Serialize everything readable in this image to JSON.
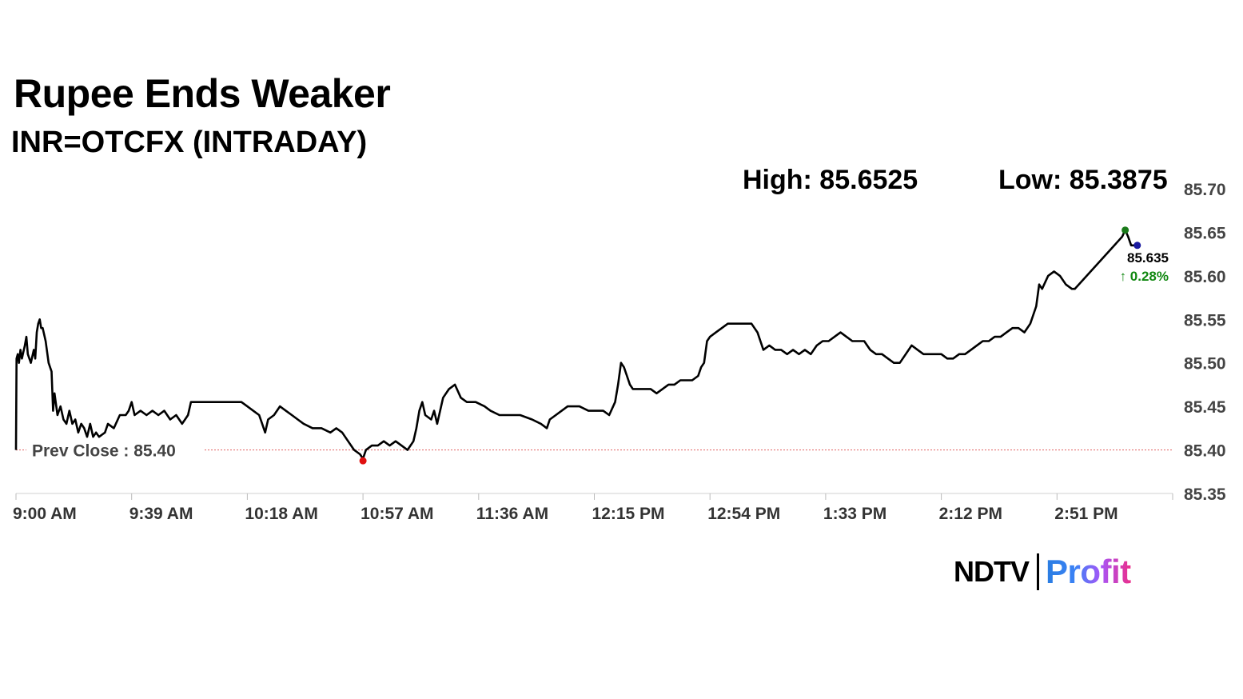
{
  "header": {
    "title": "Rupee Ends Weaker",
    "subtitle": "INR=OTCFX (INTRADAY)",
    "high_text": "High: 85.6525",
    "low_text": "Low: 85.3875"
  },
  "chart_data": {
    "type": "line",
    "title": "Rupee Ends Weaker",
    "subtitle": "INR=OTCFX (INTRADAY)",
    "xlabel": "",
    "ylabel": "",
    "ylim": [
      85.35,
      85.7
    ],
    "y_ticks": [
      "85.70",
      "85.65",
      "85.60",
      "85.55",
      "85.50",
      "85.45",
      "85.40",
      "85.35"
    ],
    "y_tick_values": [
      85.7,
      85.65,
      85.6,
      85.55,
      85.5,
      85.45,
      85.4,
      85.35
    ],
    "x_ticks": [
      "9:00 AM",
      "9:39 AM",
      "10:18 AM",
      "10:57 AM",
      "11:36 AM",
      "12:15 PM",
      "12:54 PM",
      "1:33 PM",
      "2:12 PM",
      "2:51 PM"
    ],
    "x_tick_minutes": [
      0,
      39,
      78,
      117,
      156,
      195,
      234,
      273,
      312,
      351
    ],
    "x_range_minutes": [
      0,
      390
    ],
    "grid": false,
    "prev_close": 85.4,
    "prev_close_label": "Prev Close : 85.40",
    "high": 85.6525,
    "low": 85.3875,
    "last_value_label": "85.635",
    "last_change_label": "↑ 0.28%",
    "colors": {
      "line": "#000000",
      "prev_close": "#e06060",
      "high_marker": "#1a7a1a",
      "low_marker": "#e01010",
      "last_marker": "#1a1aa0",
      "change": "#118811"
    },
    "series": [
      {
        "values": [
          [
            0,
            85.4
          ],
          [
            0.2,
            85.505
          ],
          [
            0.6,
            85.51
          ],
          [
            1,
            85.5
          ],
          [
            1.5,
            85.515
          ],
          [
            2,
            85.505
          ],
          [
            3,
            85.52
          ],
          [
            3.5,
            85.53
          ],
          [
            4,
            85.51
          ],
          [
            5,
            85.5
          ],
          [
            6,
            85.515
          ],
          [
            6.5,
            85.505
          ],
          [
            7,
            85.535
          ],
          [
            7.5,
            85.545
          ],
          [
            8,
            85.55
          ],
          [
            8.5,
            85.54
          ],
          [
            9,
            85.54
          ],
          [
            10,
            85.525
          ],
          [
            11,
            85.5
          ],
          [
            12,
            85.49
          ],
          [
            12.5,
            85.445
          ],
          [
            13,
            85.465
          ],
          [
            14,
            85.44
          ],
          [
            15,
            85.45
          ],
          [
            16,
            85.435
          ],
          [
            17,
            85.43
          ],
          [
            18,
            85.445
          ],
          [
            19,
            85.43
          ],
          [
            20,
            85.435
          ],
          [
            21,
            85.42
          ],
          [
            22,
            85.43
          ],
          [
            23,
            85.425
          ],
          [
            24,
            85.415
          ],
          [
            25,
            85.43
          ],
          [
            26,
            85.415
          ],
          [
            27,
            85.42
          ],
          [
            28,
            85.415
          ],
          [
            30,
            85.42
          ],
          [
            31,
            85.43
          ],
          [
            33,
            85.425
          ],
          [
            35,
            85.44
          ],
          [
            37,
            85.44
          ],
          [
            38,
            85.445
          ],
          [
            39,
            85.455
          ],
          [
            40,
            85.44
          ],
          [
            42,
            85.445
          ],
          [
            44,
            85.44
          ],
          [
            46,
            85.445
          ],
          [
            48,
            85.44
          ],
          [
            50,
            85.445
          ],
          [
            52,
            85.435
          ],
          [
            54,
            85.44
          ],
          [
            56,
            85.43
          ],
          [
            57,
            85.435
          ],
          [
            58,
            85.44
          ],
          [
            59,
            85.455
          ],
          [
            60,
            85.455
          ],
          [
            70,
            85.455
          ],
          [
            76,
            85.455
          ],
          [
            78,
            85.45
          ],
          [
            80,
            85.445
          ],
          [
            82,
            85.44
          ],
          [
            83,
            85.43
          ],
          [
            84,
            85.42
          ],
          [
            85,
            85.435
          ],
          [
            87,
            85.44
          ],
          [
            89,
            85.45
          ],
          [
            91,
            85.445
          ],
          [
            93,
            85.44
          ],
          [
            95,
            85.435
          ],
          [
            97,
            85.43
          ],
          [
            100,
            85.425
          ],
          [
            103,
            85.425
          ],
          [
            106,
            85.42
          ],
          [
            108,
            85.425
          ],
          [
            110,
            85.42
          ],
          [
            112,
            85.41
          ],
          [
            114,
            85.4
          ],
          [
            116,
            85.395
          ],
          [
            117,
            85.39
          ],
          [
            118,
            85.4
          ],
          [
            120,
            85.405
          ],
          [
            122,
            85.405
          ],
          [
            124,
            85.41
          ],
          [
            126,
            85.405
          ],
          [
            128,
            85.41
          ],
          [
            130,
            85.405
          ],
          [
            132,
            85.4
          ],
          [
            134,
            85.41
          ],
          [
            135,
            85.425
          ],
          [
            136,
            85.445
          ],
          [
            137,
            85.455
          ],
          [
            138,
            85.44
          ],
          [
            140,
            85.435
          ],
          [
            141,
            85.445
          ],
          [
            142,
            85.43
          ],
          [
            144,
            85.46
          ],
          [
            146,
            85.47
          ],
          [
            148,
            85.475
          ],
          [
            150,
            85.46
          ],
          [
            152,
            85.455
          ],
          [
            155,
            85.455
          ],
          [
            158,
            85.45
          ],
          [
            160,
            85.445
          ],
          [
            163,
            85.44
          ],
          [
            166,
            85.44
          ],
          [
            170,
            85.44
          ],
          [
            174,
            85.435
          ],
          [
            177,
            85.43
          ],
          [
            179,
            85.425
          ],
          [
            180,
            85.435
          ],
          [
            182,
            85.44
          ],
          [
            184,
            85.445
          ],
          [
            186,
            85.45
          ],
          [
            190,
            85.45
          ],
          [
            193,
            85.445
          ],
          [
            196,
            85.445
          ],
          [
            198,
            85.445
          ],
          [
            200,
            85.44
          ],
          [
            202,
            85.455
          ],
          [
            203,
            85.475
          ],
          [
            204,
            85.5
          ],
          [
            205,
            85.495
          ],
          [
            206,
            85.485
          ],
          [
            207,
            85.475
          ],
          [
            208,
            85.47
          ],
          [
            210,
            85.47
          ],
          [
            212,
            85.47
          ],
          [
            214,
            85.47
          ],
          [
            216,
            85.465
          ],
          [
            218,
            85.47
          ],
          [
            220,
            85.475
          ],
          [
            222,
            85.475
          ],
          [
            224,
            85.48
          ],
          [
            226,
            85.48
          ],
          [
            228,
            85.48
          ],
          [
            230,
            85.485
          ],
          [
            231,
            85.495
          ],
          [
            232,
            85.5
          ],
          [
            233,
            85.525
          ],
          [
            234,
            85.53
          ],
          [
            236,
            85.535
          ],
          [
            238,
            85.54
          ],
          [
            240,
            85.545
          ],
          [
            242,
            85.545
          ],
          [
            244,
            85.545
          ],
          [
            246,
            85.545
          ],
          [
            248,
            85.545
          ],
          [
            250,
            85.535
          ],
          [
            251,
            85.525
          ],
          [
            252,
            85.515
          ],
          [
            254,
            85.52
          ],
          [
            256,
            85.515
          ],
          [
            258,
            85.515
          ],
          [
            260,
            85.51
          ],
          [
            262,
            85.515
          ],
          [
            264,
            85.51
          ],
          [
            266,
            85.515
          ],
          [
            268,
            85.51
          ],
          [
            270,
            85.52
          ],
          [
            272,
            85.525
          ],
          [
            274,
            85.525
          ],
          [
            276,
            85.53
          ],
          [
            278,
            85.535
          ],
          [
            280,
            85.53
          ],
          [
            282,
            85.525
          ],
          [
            284,
            85.525
          ],
          [
            286,
            85.525
          ],
          [
            288,
            85.515
          ],
          [
            290,
            85.51
          ],
          [
            292,
            85.51
          ],
          [
            294,
            85.505
          ],
          [
            296,
            85.5
          ],
          [
            298,
            85.5
          ],
          [
            300,
            85.51
          ],
          [
            302,
            85.52
          ],
          [
            304,
            85.515
          ],
          [
            306,
            85.51
          ],
          [
            308,
            85.51
          ],
          [
            310,
            85.51
          ],
          [
            312,
            85.51
          ],
          [
            314,
            85.505
          ],
          [
            316,
            85.505
          ],
          [
            318,
            85.51
          ],
          [
            320,
            85.51
          ],
          [
            322,
            85.515
          ],
          [
            324,
            85.52
          ],
          [
            326,
            85.525
          ],
          [
            328,
            85.525
          ],
          [
            330,
            85.53
          ],
          [
            332,
            85.53
          ],
          [
            334,
            85.535
          ],
          [
            336,
            85.54
          ],
          [
            338,
            85.54
          ],
          [
            340,
            85.535
          ],
          [
            342,
            85.545
          ],
          [
            344,
            85.565
          ],
          [
            345,
            85.59
          ],
          [
            346,
            85.585
          ],
          [
            348,
            85.6
          ],
          [
            350,
            85.605
          ],
          [
            352,
            85.6
          ],
          [
            354,
            85.59
          ],
          [
            356,
            85.585
          ],
          [
            357,
            85.585
          ],
          [
            373,
            85.645
          ],
          [
            374,
            85.6525
          ],
          [
            375,
            85.645
          ],
          [
            376,
            85.635
          ],
          [
            377,
            85.635
          ]
        ]
      }
    ]
  },
  "branding": {
    "logo_ndtv": "NDTV",
    "logo_profit": "Profit"
  }
}
